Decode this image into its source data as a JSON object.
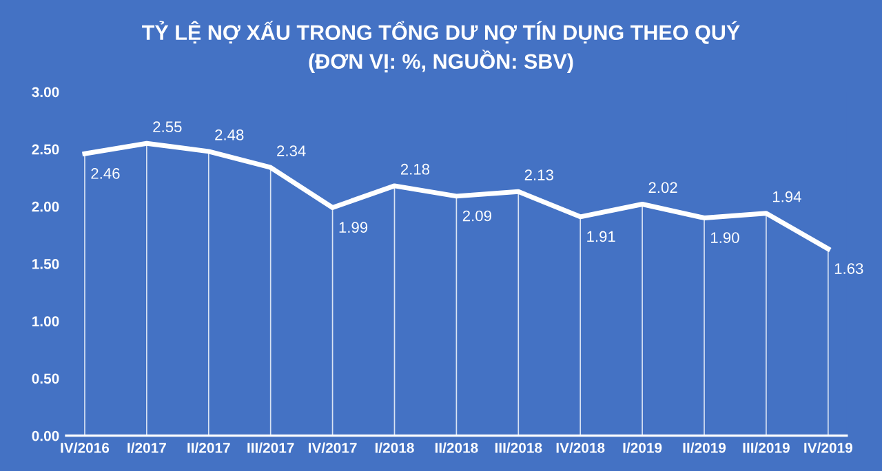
{
  "chart_data": {
    "type": "line",
    "title": "TỶ LỆ NỢ XẤU TRONG TỔNG DƯ NỢ TÍN DỤNG THEO QUÝ\n(ĐƠN VỊ: %, NGUỒN: SBV)",
    "categories": [
      "IV/2016",
      "I/2017",
      "II/2017",
      "III/2017",
      "IV/2017",
      "I/2018",
      "II/2018",
      "III/2018",
      "IV/2018",
      "I/2019",
      "II/2019",
      "III/2019",
      "IV/2019"
    ],
    "series": [
      {
        "color": "#ffffff",
        "values": [
          2.46,
          2.55,
          2.48,
          2.34,
          1.99,
          2.18,
          2.09,
          2.13,
          1.91,
          2.02,
          1.9,
          1.94,
          1.63
        ]
      }
    ],
    "ylim": [
      0,
      3
    ],
    "yticks": [
      {
        "value": 0,
        "label": "0.00"
      },
      {
        "value": 0.5,
        "label": "0.50"
      },
      {
        "value": 1,
        "label": "1.00"
      },
      {
        "value": 1.5,
        "label": "1.50"
      },
      {
        "value": 2,
        "label": "2.00"
      },
      {
        "value": 2.5,
        "label": "2.50"
      },
      {
        "value": 3,
        "label": "3.00"
      }
    ],
    "value_labels": [
      "2.46",
      "2.55",
      "2.48",
      "2.34",
      "1.99",
      "2.18",
      "2.09",
      "2.13",
      "1.91",
      "2.02",
      "1.90",
      "1.94",
      "1.63"
    ],
    "grid": "x",
    "marker": "none",
    "line_style": "solid",
    "legend": false
  }
}
